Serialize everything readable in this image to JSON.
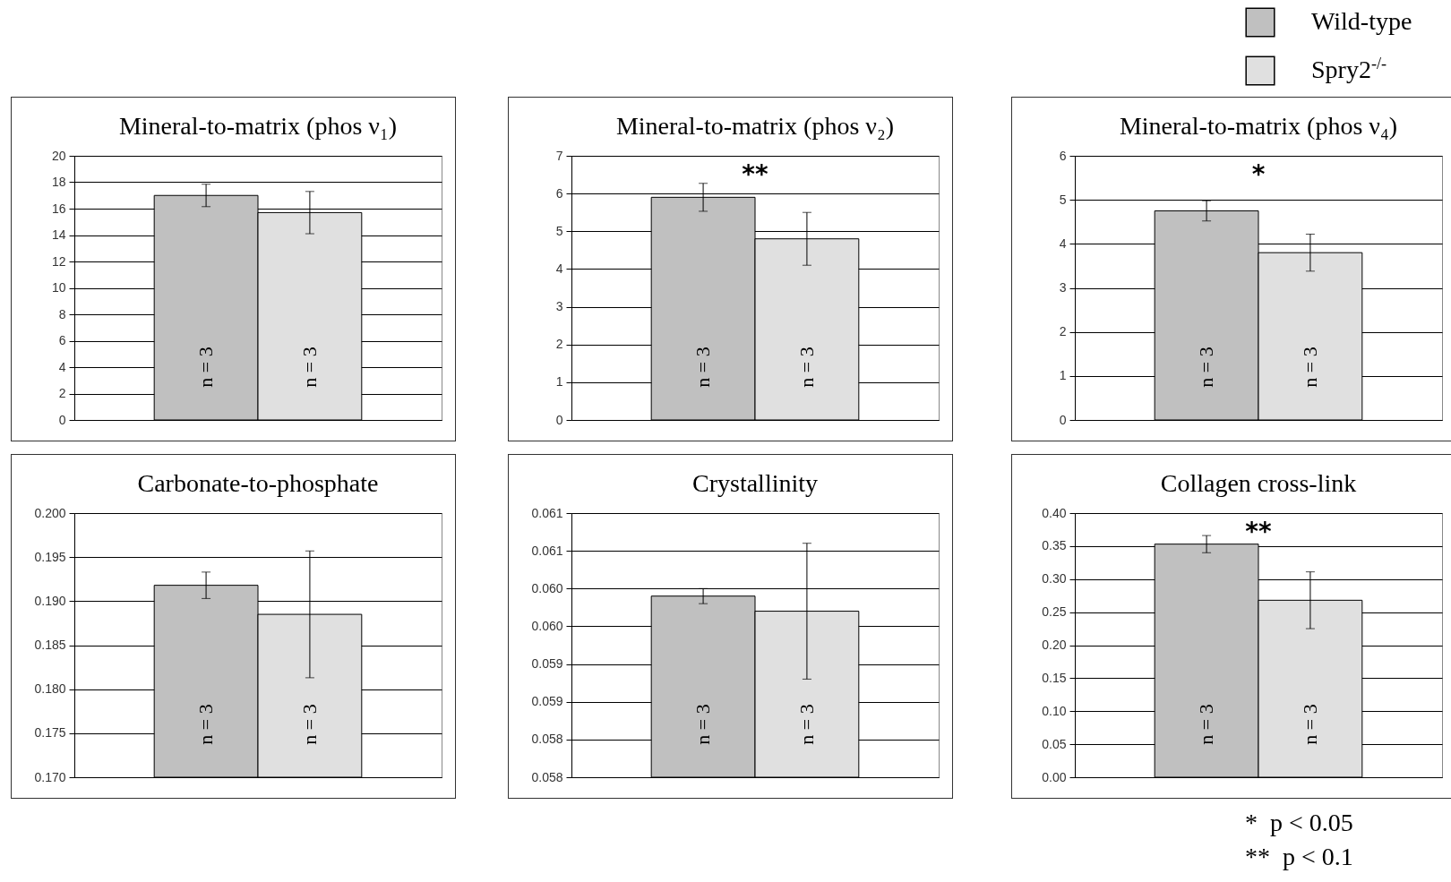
{
  "chart_data": [
    {
      "type": "bar",
      "title": "Mineral-to-matrix (phos ν₁)",
      "categories": [
        null
      ],
      "ylim": [
        0,
        20
      ],
      "yticks": [
        0,
        2,
        4,
        6,
        8,
        10,
        12,
        14,
        16,
        18,
        20
      ],
      "grid": "y",
      "legend": false,
      "annotations": [
        "n = 3",
        "n = 3"
      ],
      "series": [
        {
          "color": "#c0c0c0",
          "values": [
            17.0
          ],
          "errors": [
            0.85
          ]
        },
        {
          "color": "#e0e0e0",
          "values": [
            15.7
          ],
          "errors": [
            1.6
          ]
        }
      ]
    },
    {
      "type": "bar",
      "title": "Mineral-to-matrix (phos ν₂)",
      "categories": [
        null
      ],
      "ylim": [
        0,
        7
      ],
      "yticks": [
        0,
        1,
        2,
        3,
        4,
        5,
        6,
        7
      ],
      "grid": "y",
      "legend": false,
      "annotations": [
        "n = 3",
        "n = 3",
        "**"
      ],
      "series": [
        {
          "color": "#c0c0c0",
          "values": [
            5.9
          ],
          "errors": [
            0.37
          ]
        },
        {
          "color": "#e0e0e0",
          "values": [
            4.8
          ],
          "errors": [
            0.7
          ]
        }
      ]
    },
    {
      "type": "bar",
      "title": "Mineral-to-matrix (phos ν₄)",
      "categories": [
        null
      ],
      "ylim": [
        0,
        6
      ],
      "yticks": [
        0,
        1,
        2,
        3,
        4,
        5,
        6
      ],
      "grid": "y",
      "legend": "top right",
      "annotations": [
        "n = 3",
        "n = 3",
        "*"
      ],
      "series": [
        {
          "name": "Wild-type",
          "color": "#c0c0c0",
          "values": [
            4.75
          ],
          "errors": [
            0.23
          ]
        },
        {
          "name": "Spry2$^{-/-}$",
          "color": "#e0e0e0",
          "values": [
            3.8
          ],
          "errors": [
            0.42
          ]
        }
      ]
    },
    {
      "type": "bar",
      "title": "Carbonate-to-phosphate",
      "categories": [
        null
      ],
      "ylim": [
        0.17,
        0.2
      ],
      "yticks": [
        {
          "value": 0.17,
          "label": "0.170"
        },
        0.175,
        {
          "value": 0.18,
          "label": "0.180"
        },
        0.185,
        {
          "value": 0.19,
          "label": "0.190"
        },
        0.195,
        {
          "value": 0.2,
          "label": "0.200"
        }
      ],
      "grid": "y",
      "legend": false,
      "annotations": [
        "n = 3",
        "n = 3"
      ],
      "series": [
        {
          "color": "#c0c0c0",
          "values": [
            0.1918
          ],
          "errors": [
            0.0015
          ]
        },
        {
          "color": "#e0e0e0",
          "values": [
            0.1885
          ],
          "errors": [
            0.0072
          ]
        }
      ]
    },
    {
      "type": "bar",
      "title": "Crystallinity",
      "categories": [
        null
      ],
      "ylim": [
        0.058,
        0.0615
      ],
      "yticks": [
        {
          "value": 0.058,
          "label": "0.058"
        },
        {
          "value": 0.0585,
          "label": "0.058"
        },
        {
          "value": 0.059,
          "label": "0.059"
        },
        {
          "value": 0.0595,
          "label": "0.059"
        },
        {
          "value": 0.06,
          "label": "0.060"
        },
        {
          "value": 0.0605,
          "label": "0.060"
        },
        {
          "value": 0.061,
          "label": "0.061"
        },
        {
          "value": 0.0615,
          "label": "0.061"
        }
      ],
      "grid": "y",
      "legend": false,
      "annotations": [
        "n = 3",
        "n = 3"
      ],
      "series": [
        {
          "color": "#c0c0c0",
          "values": [
            0.0604
          ],
          "errors": [
            0.0001
          ]
        },
        {
          "color": "#e0e0e0",
          "values": [
            0.0602
          ],
          "errors": [
            0.0009
          ]
        }
      ]
    },
    {
      "type": "bar",
      "title": "Collagen cross-link",
      "categories": [
        null
      ],
      "ylim": [
        0,
        0.4
      ],
      "yticks": [
        {
          "value": 0,
          "label": "0.00"
        },
        0.05,
        {
          "value": 0.1,
          "label": "0.10"
        },
        0.15,
        {
          "value": 0.2,
          "label": "0.20"
        },
        0.25,
        {
          "value": 0.3,
          "label": "0.30"
        },
        0.35,
        {
          "value": 0.4,
          "label": "0.40"
        }
      ],
      "grid": "y",
      "legend": false,
      "annotations": [
        "n = 3",
        "n = 3",
        "**"
      ],
      "series": [
        {
          "color": "#c0c0c0",
          "values": [
            0.353
          ],
          "errors": [
            0.013
          ]
        },
        {
          "color": "#e0e0e0",
          "values": [
            0.268
          ],
          "errors": [
            0.043
          ]
        }
      ]
    },
    {
      "type": "other",
      "annotations": [
        "*  p < 0.05",
        "**  p < 0.1"
      ]
    }
  ]
}
